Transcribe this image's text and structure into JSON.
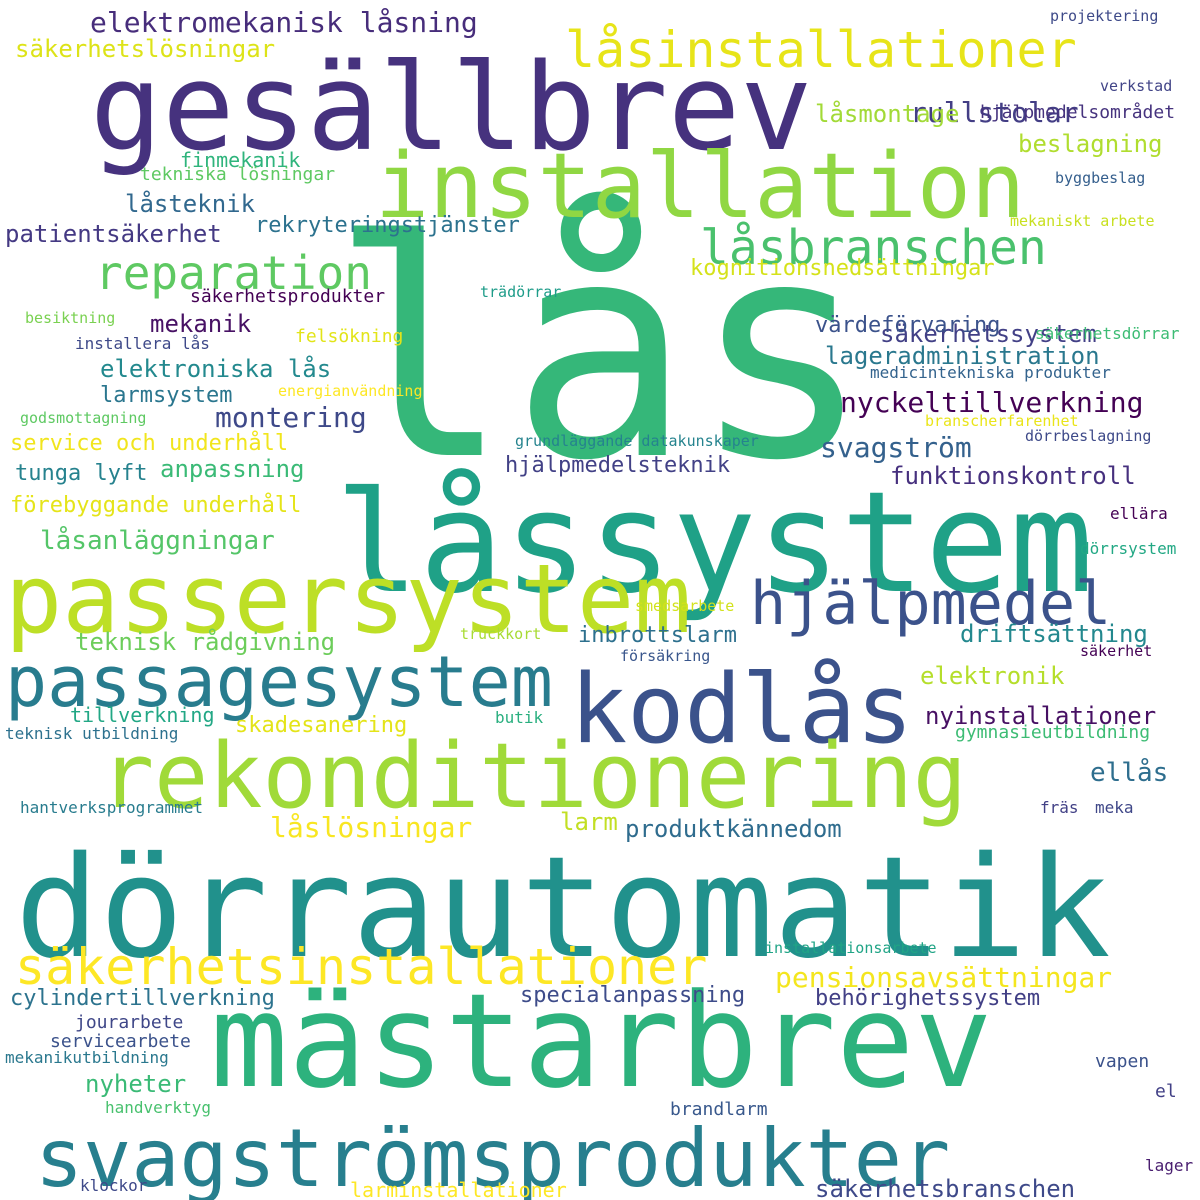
{
  "words": [
    {
      "text": "lås",
      "color": "#35b779"
    },
    {
      "text": "gesällbrev",
      "color": "#46327e"
    },
    {
      "text": "låssystem",
      "color": "#1fa187"
    },
    {
      "text": "dörrautomatik",
      "color": "#21918c"
    },
    {
      "text": "mästarbrev",
      "color": "#2db27d"
    },
    {
      "text": "installation",
      "color": "#90d743"
    },
    {
      "text": "passersystem",
      "color": "#bddf26"
    },
    {
      "text": "kodlås",
      "color": "#3b528b"
    },
    {
      "text": "rekonditionering",
      "color": "#a0da39"
    },
    {
      "text": "svagströmsprodukter",
      "color": "#277f8e"
    },
    {
      "text": "passagesystem",
      "color": "#287c8e"
    },
    {
      "text": "låsinstallationer",
      "color": "#e7e419"
    },
    {
      "text": "hjälpmedel",
      "color": "#3b528b"
    },
    {
      "text": "säkerhetsinstallationer",
      "color": "#fde725"
    },
    {
      "text": "låsbranschen",
      "color": "#4ac16d"
    },
    {
      "text": "reparation",
      "color": "#5ec962"
    },
    {
      "text": "elektromekanisk låsning",
      "color": "#472d7b"
    },
    {
      "text": "säkerhetslösningar",
      "color": "#dde318"
    },
    {
      "text": "projektering",
      "color": "#3e4a89"
    },
    {
      "text": "rullstolar",
      "color": "#433e85"
    },
    {
      "text": "verkstad",
      "color": "#414487"
    },
    {
      "text": "låsmontage",
      "color": "#a2da37"
    },
    {
      "text": "hjälpmedelsområdet",
      "color": "#46337e"
    },
    {
      "text": "beslagning",
      "color": "#b0dd2f"
    },
    {
      "text": "finmekanik",
      "color": "#2fb47c"
    },
    {
      "text": "tekniska lösningar",
      "color": "#5ec962"
    },
    {
      "text": "byggbeslag",
      "color": "#355f8d"
    },
    {
      "text": "låsteknik",
      "color": "#31688e"
    },
    {
      "text": "patientsäkerhet",
      "color": "#443983"
    },
    {
      "text": "rekryteringstjänster",
      "color": "#2c728e"
    },
    {
      "text": "mekaniskt arbete",
      "color": "#c8e020"
    },
    {
      "text": "kognitionsnedsättningar",
      "color": "#d5e21a"
    },
    {
      "text": "säkerhetsprodukter",
      "color": "#440154"
    },
    {
      "text": "trädörrar",
      "color": "#1e9c89"
    },
    {
      "text": "säkerhetssystem",
      "color": "#424086"
    },
    {
      "text": "mekanik",
      "color": "#471164"
    },
    {
      "text": "besiktning",
      "color": "#7ad151"
    },
    {
      "text": "felsökning",
      "color": "#e2e418"
    },
    {
      "text": "värdeförvaring",
      "color": "#3b528b"
    },
    {
      "text": "säkerhetsdörrar",
      "color": "#3dbc74"
    },
    {
      "text": "installera lås",
      "color": "#3e4989"
    },
    {
      "text": "lageradministration",
      "color": "#2a788e"
    },
    {
      "text": "elektroniska lås",
      "color": "#23898e"
    },
    {
      "text": "medicintekniska produkter",
      "color": "#33638d"
    },
    {
      "text": "larmsystem",
      "color": "#2a768e"
    },
    {
      "text": "energianvändning",
      "color": "#fde725"
    },
    {
      "text": "nyckeltillverkning",
      "color": "#440154"
    },
    {
      "text": "montering",
      "color": "#3e4989"
    },
    {
      "text": "godsmottagning",
      "color": "#5ec962"
    },
    {
      "text": "branscherfarenhet",
      "color": "#eae51a"
    },
    {
      "text": "service och underhåll",
      "color": "#f1e51d"
    },
    {
      "text": "grundläggande datakunskaper",
      "color": "#25838e"
    },
    {
      "text": "dörrbeslagning",
      "color": "#3e4a89"
    },
    {
      "text": "svagström",
      "color": "#34618d"
    },
    {
      "text": "tunga lyft",
      "color": "#26828e"
    },
    {
      "text": "anpassning",
      "color": "#3aba76"
    },
    {
      "text": "hjälpmedelsteknik",
      "color": "#424186"
    },
    {
      "text": "funktionskontroll",
      "color": "#46307e"
    },
    {
      "text": "förebyggande underhåll",
      "color": "#e5e419"
    },
    {
      "text": "ellära",
      "color": "#440154"
    },
    {
      "text": "låsanläggningar",
      "color": "#54c568"
    },
    {
      "text": "dörrsystem",
      "color": "#22a884"
    },
    {
      "text": "smedsarbete",
      "color": "#d2e21b"
    },
    {
      "text": "teknisk rådgivning",
      "color": "#6ccd5a"
    },
    {
      "text": "inbrottslarm",
      "color": "#2d708e"
    },
    {
      "text": "driftsättning",
      "color": "#23888e"
    },
    {
      "text": "truckkort",
      "color": "#a8db34"
    },
    {
      "text": "försäkring",
      "color": "#39568c"
    },
    {
      "text": "säkerhet",
      "color": "#440154"
    },
    {
      "text": "elektronik",
      "color": "#b5de2b"
    },
    {
      "text": "tillverkning",
      "color": "#22a785"
    },
    {
      "text": "butik",
      "color": "#29af7f"
    },
    {
      "text": "skadesanering",
      "color": "#e4e419"
    },
    {
      "text": "nyinstallationer",
      "color": "#471063"
    },
    {
      "text": "teknisk utbildning",
      "color": "#2d718e"
    },
    {
      "text": "gymnasieutbildning",
      "color": "#3dbc74"
    },
    {
      "text": "ellås",
      "color": "#2e6e8e"
    },
    {
      "text": "låslösningar",
      "color": "#f8e621"
    },
    {
      "text": "larm",
      "color": "#c2df23"
    },
    {
      "text": "produktkännedom",
      "color": "#2f6c8e"
    },
    {
      "text": "hantverksprogrammet",
      "color": "#287c8e"
    },
    {
      "text": "fräs",
      "color": "#424186"
    },
    {
      "text": "meka",
      "color": "#3f4788"
    },
    {
      "text": "installationsarbete",
      "color": "#20a486"
    },
    {
      "text": "pensionsavsättningar",
      "color": "#f4e61e"
    },
    {
      "text": "cylindertillverkning",
      "color": "#2c738e"
    },
    {
      "text": "specialanpassning",
      "color": "#3e4c8a"
    },
    {
      "text": "behörighetssystem",
      "color": "#424086"
    },
    {
      "text": "jourarbete",
      "color": "#3f4788"
    },
    {
      "text": "servicearbete",
      "color": "#3b528b"
    },
    {
      "text": "mekanikutbildning",
      "color": "#2a788e"
    },
    {
      "text": "vapen",
      "color": "#3b528b"
    },
    {
      "text": "nyheter",
      "color": "#3aba76"
    },
    {
      "text": "el",
      "color": "#424086"
    },
    {
      "text": "handverktyg",
      "color": "#48c16e"
    },
    {
      "text": "brandlarm",
      "color": "#38588c"
    },
    {
      "text": "lager",
      "color": "#481d6f"
    },
    {
      "text": "klockor",
      "color": "#3e4989"
    },
    {
      "text": "larminstallationer",
      "color": "#fde725"
    },
    {
      "text": "säkerhetsbranschen",
      "color": "#3e4989"
    }
  ]
}
